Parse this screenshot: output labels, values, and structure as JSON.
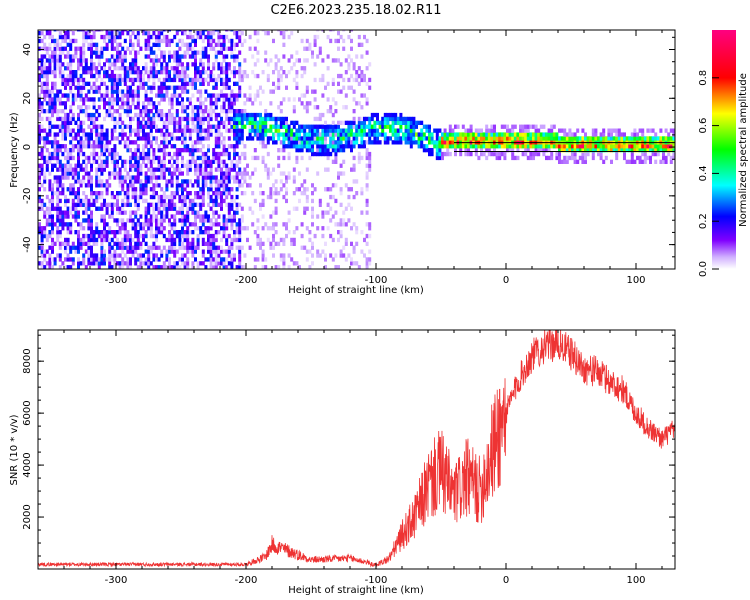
{
  "title": "C2E6.2023.235.18.02.R11",
  "chart_data": [
    {
      "type": "heatmap",
      "xlabel": "Height of straight line (km)",
      "ylabel": "Frequency (Hz)",
      "xlim": [
        -360,
        130
      ],
      "ylim": [
        -50,
        48
      ],
      "x_ticks": [
        -300,
        -200,
        -100,
        0,
        100
      ],
      "y_ticks": [
        -40,
        -20,
        0,
        20,
        40
      ],
      "colorbar": {
        "label": "Normalized spectral amplitude",
        "range": [
          0,
          1
        ],
        "ticks": [
          0.0,
          0.2,
          0.4,
          0.6,
          0.8
        ],
        "colors": [
          "#ffffff",
          "#8000ff",
          "#0000ff",
          "#00ffff",
          "#00ff00",
          "#ffff00",
          "#ff0000",
          "#ff0080"
        ]
      },
      "description_regions": [
        {
          "x_range": [
            -360,
            -205
          ],
          "freq_range": [
            -50,
            48
          ],
          "amplitude_range": [
            0.05,
            0.3
          ]
        },
        {
          "x_range": [
            -205,
            -105
          ],
          "freq_range": [
            -50,
            48
          ],
          "amplitude_range": [
            0.02,
            0.1
          ]
        },
        {
          "x_range": [
            -210,
            -50
          ],
          "center_freq": 5,
          "width_hz": 12,
          "amplitude_range": [
            0.2,
            0.6
          ]
        },
        {
          "x_range": [
            -50,
            130
          ],
          "center_freq": 0,
          "width_hz": 3,
          "amplitude_range": [
            0.5,
            0.95
          ]
        }
      ]
    },
    {
      "type": "line",
      "xlabel": "Height of straight line (km)",
      "ylabel": "SNR (10 * v/v)",
      "xlim": [
        -360,
        130
      ],
      "ylim": [
        0,
        9200
      ],
      "x_ticks": [
        -300,
        -200,
        -100,
        0,
        100
      ],
      "y_ticks": [
        2000,
        4000,
        6000,
        8000
      ],
      "series": [
        {
          "color": "#ee3333",
          "x": [
            -360,
            -300,
            -250,
            -200,
            -185,
            -180,
            -150,
            -120,
            -100,
            -90,
            -80,
            -70,
            -60,
            -50,
            -40,
            -30,
            -20,
            -10,
            0,
            10,
            20,
            30,
            40,
            50,
            60,
            70,
            80,
            90,
            100,
            110,
            120,
            130
          ],
          "y": [
            150,
            150,
            150,
            150,
            400,
            800,
            300,
            350,
            150,
            400,
            1300,
            2000,
            3200,
            3800,
            2800,
            3500,
            3000,
            4600,
            6000,
            7300,
            8200,
            8600,
            8700,
            8300,
            7700,
            7600,
            7200,
            6900,
            6000,
            5400,
            5000,
            5400
          ]
        }
      ]
    }
  ]
}
